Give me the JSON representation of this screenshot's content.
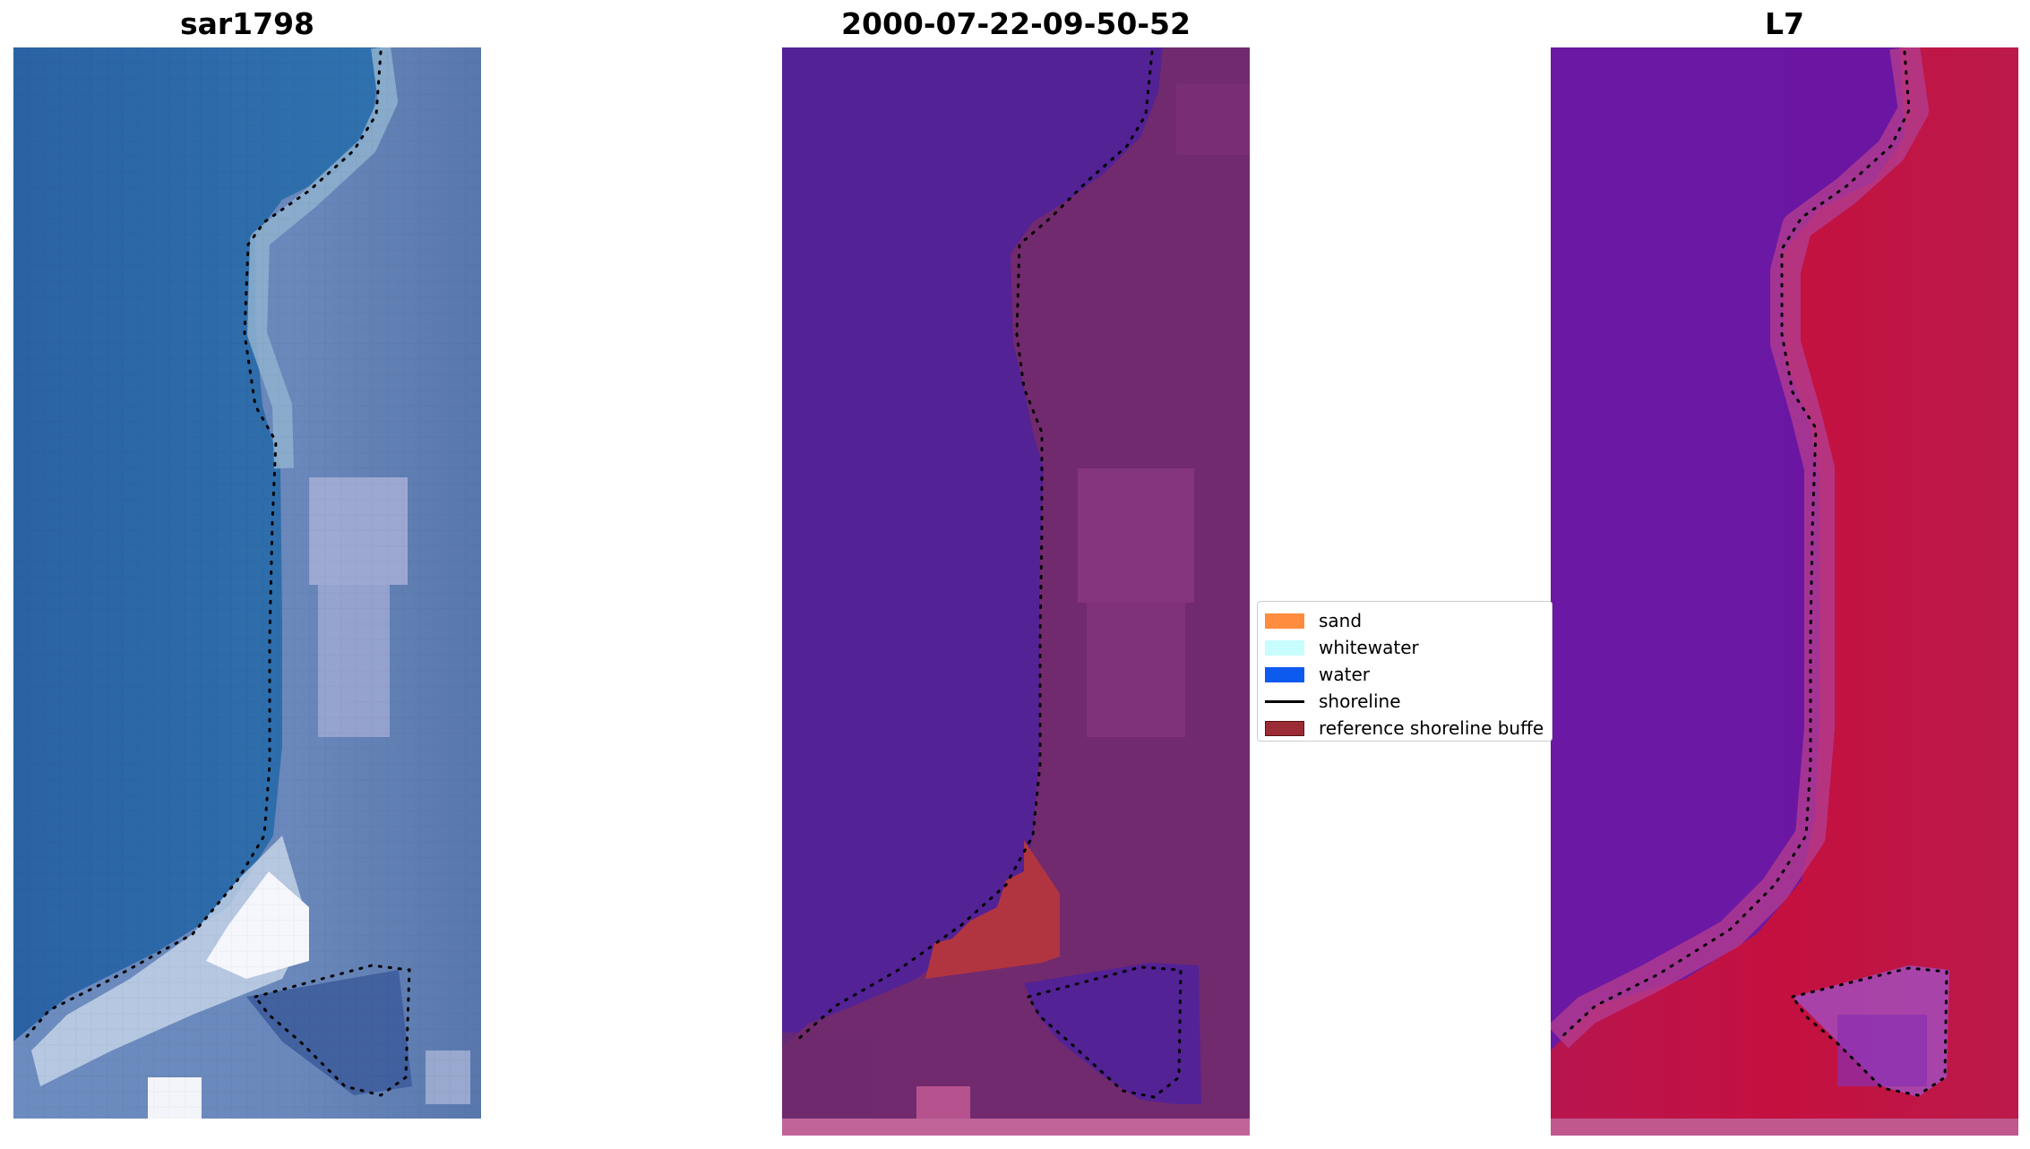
{
  "panels": {
    "left": {
      "title": "sar1798"
    },
    "middle": {
      "title": "2000-07-22-09-50-52"
    },
    "right": {
      "title": "L7"
    }
  },
  "legend": {
    "items": [
      {
        "label": "sand",
        "color": "#ff8c3f",
        "kind": "patch"
      },
      {
        "label": "whitewater",
        "color": "#c8fdfd",
        "kind": "patch"
      },
      {
        "label": "water",
        "color": "#0d5aef",
        "kind": "patch"
      },
      {
        "label": "shoreline",
        "color": "#000000",
        "kind": "line"
      },
      {
        "label": "reference shoreline buffe",
        "color": "#9b2b35",
        "kind": "patch"
      }
    ]
  },
  "colors": {
    "rgb_water": "#2e6aa8",
    "rgb_land": "#5d7fb4",
    "rgb_whitewater": "#f2f4fa",
    "class_water": "#532295",
    "class_land": "#722a6e",
    "class_sand": "#b13540",
    "ndwi_water": "#6a16a3",
    "ndwi_land": "#c31348"
  }
}
